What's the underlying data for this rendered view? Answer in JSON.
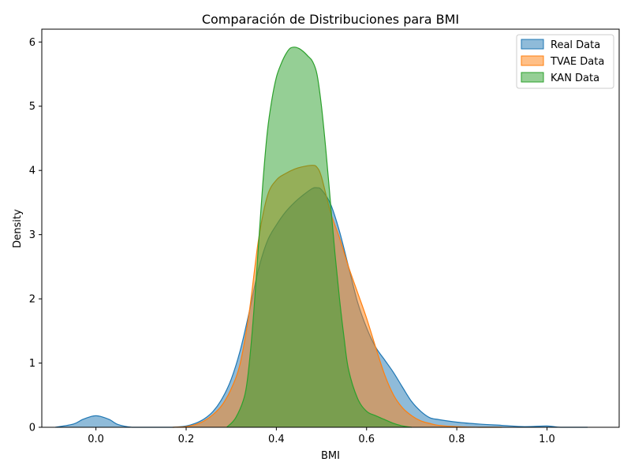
{
  "chart_data": {
    "type": "area",
    "title": "Comparación de Distribuciones para BMI",
    "xlabel": "BMI",
    "ylabel": "Density",
    "xlim": [
      -0.12,
      1.16
    ],
    "ylim": [
      0,
      6.2
    ],
    "xticks": [
      "0.0",
      "0.2",
      "0.4",
      "0.6",
      "0.8",
      "1.0"
    ],
    "yticks": [
      "0",
      "1",
      "2",
      "3",
      "4",
      "5",
      "6"
    ],
    "grid": false,
    "legend_position": "top-right",
    "series": [
      {
        "name": "Real Data",
        "color": "#1f77b4",
        "x": [
          -0.09,
          -0.05,
          -0.03,
          -0.01,
          0.0,
          0.01,
          0.03,
          0.05,
          0.08,
          0.12,
          0.17,
          0.2,
          0.22,
          0.24,
          0.26,
          0.28,
          0.3,
          0.32,
          0.34,
          0.36,
          0.38,
          0.4,
          0.42,
          0.44,
          0.46,
          0.48,
          0.49,
          0.5,
          0.52,
          0.54,
          0.56,
          0.58,
          0.6,
          0.62,
          0.64,
          0.66,
          0.68,
          0.7,
          0.72,
          0.74,
          0.76,
          0.8,
          0.85,
          0.9,
          0.95,
          1.0,
          1.03,
          1.09
        ],
        "y": [
          0.0,
          0.05,
          0.12,
          0.17,
          0.18,
          0.17,
          0.12,
          0.04,
          0.0,
          0.0,
          0.0,
          0.02,
          0.06,
          0.13,
          0.25,
          0.45,
          0.75,
          1.2,
          1.8,
          2.45,
          2.9,
          3.15,
          3.35,
          3.5,
          3.62,
          3.72,
          3.73,
          3.7,
          3.48,
          3.05,
          2.5,
          1.95,
          1.55,
          1.25,
          1.05,
          0.85,
          0.62,
          0.4,
          0.25,
          0.15,
          0.12,
          0.08,
          0.05,
          0.03,
          0.01,
          0.02,
          0.0,
          0.0
        ]
      },
      {
        "name": "TVAE Data",
        "color": "#ff7f0e",
        "x": [
          0.17,
          0.2,
          0.22,
          0.24,
          0.26,
          0.28,
          0.3,
          0.32,
          0.34,
          0.36,
          0.38,
          0.4,
          0.42,
          0.44,
          0.46,
          0.48,
          0.49,
          0.5,
          0.52,
          0.54,
          0.56,
          0.58,
          0.6,
          0.62,
          0.64,
          0.66,
          0.68,
          0.7,
          0.72,
          0.74,
          0.76,
          0.8,
          0.85,
          0.9
        ],
        "y": [
          0.0,
          0.01,
          0.04,
          0.1,
          0.2,
          0.35,
          0.6,
          1.0,
          1.8,
          2.9,
          3.6,
          3.85,
          3.95,
          4.02,
          4.06,
          4.08,
          4.05,
          3.9,
          3.35,
          2.95,
          2.5,
          2.1,
          1.7,
          1.25,
          0.82,
          0.5,
          0.3,
          0.18,
          0.1,
          0.06,
          0.03,
          0.01,
          0.0,
          0.0
        ]
      },
      {
        "name": "KAN Data",
        "color": "#2ca02c",
        "x": [
          0.29,
          0.31,
          0.33,
          0.34,
          0.35,
          0.36,
          0.37,
          0.38,
          0.39,
          0.4,
          0.41,
          0.42,
          0.43,
          0.44,
          0.45,
          0.46,
          0.47,
          0.48,
          0.49,
          0.5,
          0.51,
          0.52,
          0.53,
          0.54,
          0.55,
          0.56,
          0.58,
          0.6,
          0.62,
          0.64,
          0.66,
          0.68,
          0.7
        ],
        "y": [
          0.0,
          0.15,
          0.5,
          1.0,
          1.8,
          2.8,
          3.8,
          4.6,
          5.1,
          5.45,
          5.65,
          5.8,
          5.9,
          5.92,
          5.9,
          5.85,
          5.78,
          5.7,
          5.5,
          5.0,
          4.3,
          3.5,
          2.7,
          2.0,
          1.4,
          0.9,
          0.45,
          0.25,
          0.18,
          0.12,
          0.06,
          0.02,
          0.0
        ]
      }
    ]
  }
}
